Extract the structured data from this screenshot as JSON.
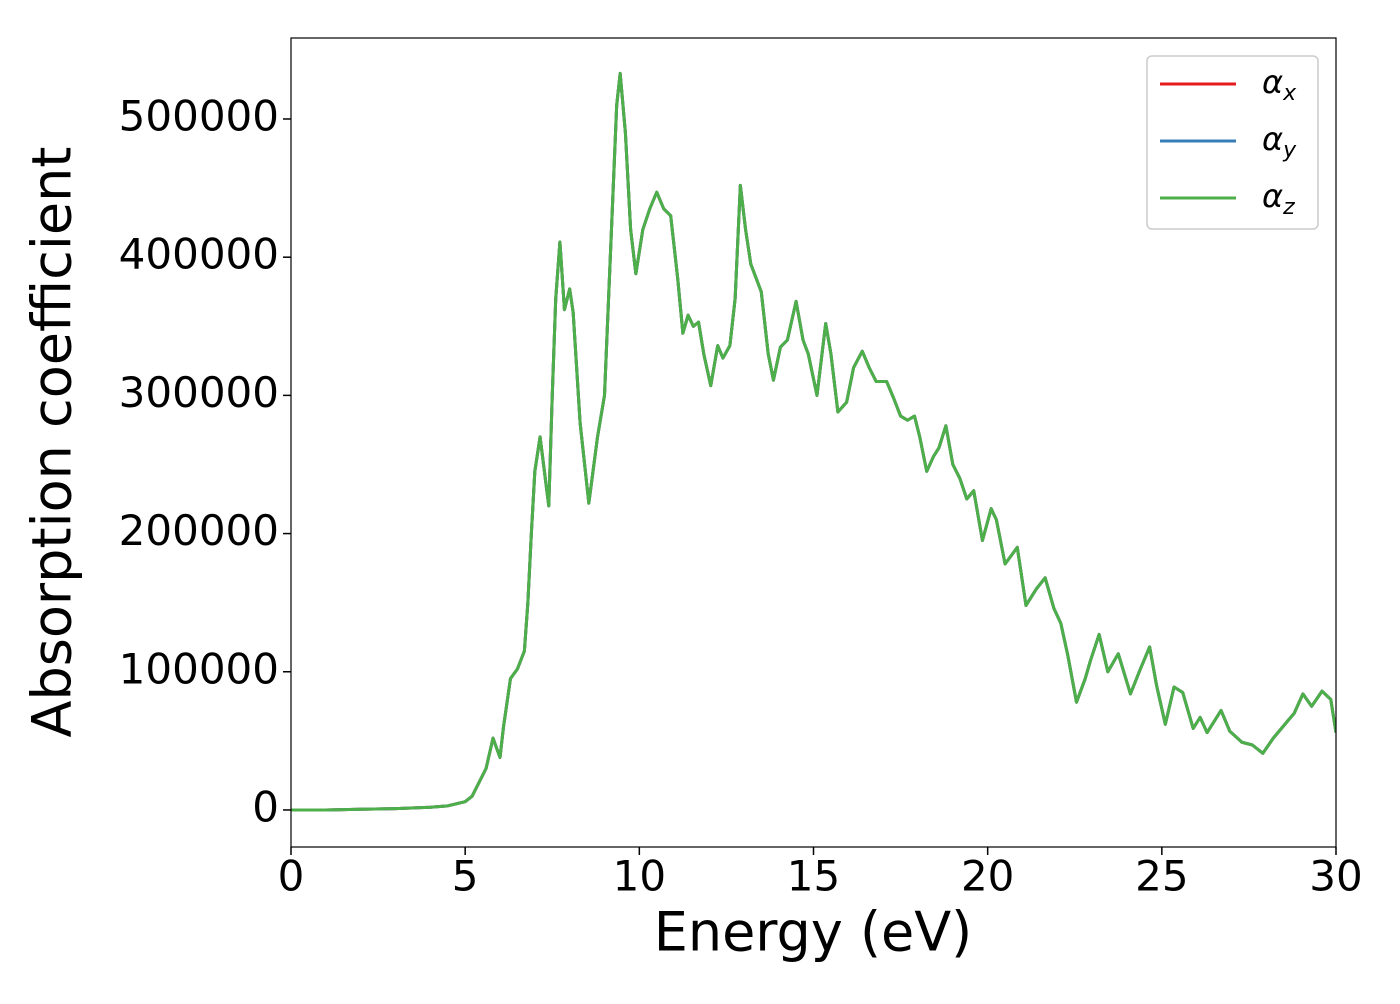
{
  "chart_data": {
    "type": "line",
    "x_label": "Energy (eV)",
    "y_label": "Absorption coefficient",
    "x": [
      0,
      1,
      2,
      3,
      4,
      4.5,
      5,
      5.2,
      5.4,
      5.6,
      5.8,
      6.0,
      6.1,
      6.3,
      6.5,
      6.7,
      6.8,
      6.9,
      7.0,
      7.15,
      7.3,
      7.4,
      7.5,
      7.6,
      7.72,
      7.85,
      8.0,
      8.1,
      8.3,
      8.55,
      8.8,
      9.0,
      9.2,
      9.35,
      9.45,
      9.6,
      9.75,
      9.9,
      10.1,
      10.3,
      10.5,
      10.7,
      10.9,
      11.1,
      11.25,
      11.4,
      11.55,
      11.7,
      11.85,
      12.05,
      12.25,
      12.4,
      12.6,
      12.75,
      12.9,
      13.05,
      13.2,
      13.35,
      13.5,
      13.7,
      13.85,
      14.05,
      14.25,
      14.5,
      14.7,
      14.85,
      15.1,
      15.35,
      15.5,
      15.7,
      15.95,
      16.15,
      16.4,
      16.6,
      16.8,
      17.1,
      17.3,
      17.5,
      17.7,
      17.9,
      18.05,
      18.25,
      18.45,
      18.6,
      18.8,
      19.0,
      19.2,
      19.4,
      19.6,
      19.85,
      20.1,
      20.25,
      20.5,
      20.85,
      21.1,
      21.4,
      21.65,
      21.9,
      22.1,
      22.3,
      22.55,
      22.8,
      22.95,
      23.2,
      23.45,
      23.75,
      24.1,
      24.4,
      24.65,
      24.85,
      25.1,
      25.35,
      25.6,
      25.9,
      26.1,
      26.3,
      26.7,
      26.95,
      27.3,
      27.6,
      27.9,
      28.2,
      28.6,
      28.8,
      29.05,
      29.3,
      29.6,
      29.85,
      30
    ],
    "series": [
      {
        "name": "αx",
        "color": "#e41a1c",
        "values": [
          0,
          0,
          500,
          1000,
          2000,
          3000,
          6000,
          10000,
          20000,
          30000,
          52000,
          38000,
          60000,
          95000,
          102000,
          115000,
          150000,
          200000,
          245000,
          270000,
          240000,
          220000,
          300000,
          370000,
          411000,
          362000,
          377000,
          360000,
          280000,
          222000,
          270000,
          300000,
          420000,
          510000,
          533000,
          490000,
          420000,
          388000,
          420000,
          435000,
          447000,
          435000,
          430000,
          385000,
          345000,
          358000,
          350000,
          353000,
          330000,
          307000,
          336000,
          327000,
          336000,
          370000,
          452000,
          420000,
          395000,
          385000,
          375000,
          330000,
          311000,
          335000,
          340000,
          368000,
          340000,
          330000,
          300000,
          352000,
          330000,
          288000,
          295000,
          320000,
          332000,
          320000,
          310000,
          310000,
          298000,
          285000,
          282000,
          285000,
          270000,
          245000,
          256000,
          262000,
          278000,
          250000,
          240000,
          225000,
          231000,
          195000,
          218000,
          210000,
          178000,
          190000,
          148000,
          160000,
          168000,
          146000,
          135000,
          112000,
          78000,
          95000,
          108000,
          127000,
          100000,
          113000,
          84000,
          103000,
          118000,
          90000,
          62000,
          89000,
          85000,
          59000,
          67000,
          56000,
          72000,
          57000,
          49000,
          47000,
          41000,
          52000,
          64000,
          70000,
          84000,
          75000,
          86000,
          80000,
          56000
        ]
      },
      {
        "name": "αy",
        "color": "#377eb8",
        "values": [
          0,
          0,
          500,
          1000,
          2000,
          3000,
          6000,
          10000,
          20000,
          30000,
          52000,
          38000,
          60000,
          95000,
          102000,
          115000,
          150000,
          200000,
          245000,
          270000,
          240000,
          220000,
          300000,
          370000,
          411000,
          362000,
          377000,
          360000,
          280000,
          222000,
          270000,
          300000,
          420000,
          510000,
          533000,
          490000,
          420000,
          388000,
          420000,
          435000,
          447000,
          435000,
          430000,
          385000,
          345000,
          358000,
          350000,
          353000,
          330000,
          307000,
          336000,
          327000,
          336000,
          370000,
          452000,
          420000,
          395000,
          385000,
          375000,
          330000,
          311000,
          335000,
          340000,
          368000,
          340000,
          330000,
          300000,
          352000,
          330000,
          288000,
          295000,
          320000,
          332000,
          320000,
          310000,
          310000,
          298000,
          285000,
          282000,
          285000,
          270000,
          245000,
          256000,
          262000,
          278000,
          250000,
          240000,
          225000,
          231000,
          195000,
          218000,
          210000,
          178000,
          190000,
          148000,
          160000,
          168000,
          146000,
          135000,
          112000,
          78000,
          95000,
          108000,
          127000,
          100000,
          113000,
          84000,
          103000,
          118000,
          90000,
          62000,
          89000,
          85000,
          59000,
          67000,
          56000,
          72000,
          57000,
          49000,
          47000,
          41000,
          52000,
          64000,
          70000,
          84000,
          75000,
          86000,
          80000,
          56000
        ]
      },
      {
        "name": "αz",
        "color": "#4daf4a",
        "values": [
          0,
          0,
          500,
          1000,
          2000,
          3000,
          6000,
          10000,
          20000,
          30000,
          52000,
          38000,
          60000,
          95000,
          102000,
          115000,
          150000,
          200000,
          245000,
          270000,
          240000,
          220000,
          300000,
          370000,
          411000,
          362000,
          377000,
          360000,
          280000,
          222000,
          270000,
          300000,
          420000,
          510000,
          533000,
          490000,
          420000,
          388000,
          420000,
          435000,
          447000,
          435000,
          430000,
          385000,
          345000,
          358000,
          350000,
          353000,
          330000,
          307000,
          336000,
          327000,
          336000,
          370000,
          452000,
          420000,
          395000,
          385000,
          375000,
          330000,
          311000,
          335000,
          340000,
          368000,
          340000,
          330000,
          300000,
          352000,
          330000,
          288000,
          295000,
          320000,
          332000,
          320000,
          310000,
          310000,
          298000,
          285000,
          282000,
          285000,
          270000,
          245000,
          256000,
          262000,
          278000,
          250000,
          240000,
          225000,
          231000,
          195000,
          218000,
          210000,
          178000,
          190000,
          148000,
          160000,
          168000,
          146000,
          135000,
          112000,
          78000,
          95000,
          108000,
          127000,
          100000,
          113000,
          84000,
          103000,
          118000,
          90000,
          62000,
          89000,
          85000,
          59000,
          67000,
          56000,
          72000,
          57000,
          49000,
          47000,
          41000,
          52000,
          64000,
          70000,
          84000,
          75000,
          86000,
          80000,
          56000
        ]
      }
    ],
    "xlim": [
      0,
      30
    ],
    "xticks": [
      0,
      5,
      10,
      15,
      20,
      25,
      30
    ],
    "ylim": [
      -26800,
      558600
    ],
    "yticks": [
      0,
      100000,
      200000,
      300000,
      400000,
      500000
    ],
    "grid": false,
    "legend": "upper right"
  }
}
